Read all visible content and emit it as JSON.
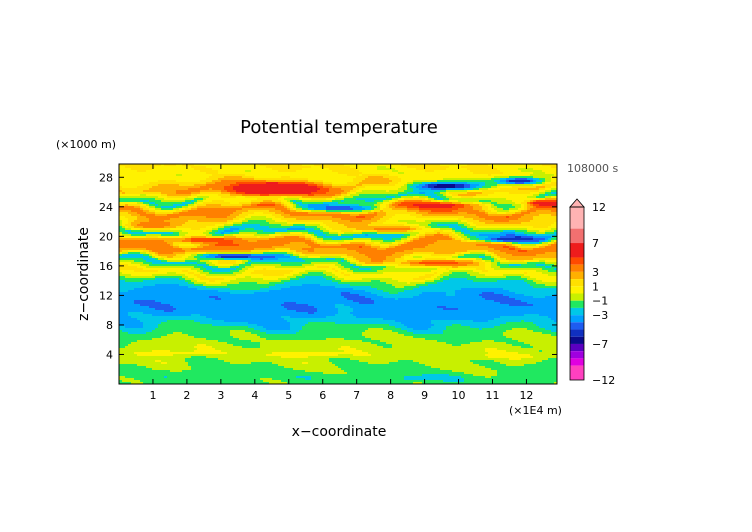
{
  "chart_data": {
    "type": "heatmap",
    "title": "Potential temperature",
    "xlabel": "x−coordinate",
    "ylabel": "z−coordinate",
    "x_unit": "(×1E4 m)",
    "y_unit": "(×1000 m)",
    "time_label": "108000 s",
    "xlim": [
      0,
      12.9
    ],
    "ylim": [
      0,
      29.8
    ],
    "x_ticks": [
      "1",
      "2",
      "3",
      "4",
      "5",
      "6",
      "7",
      "8",
      "9",
      "10",
      "11",
      "12"
    ],
    "y_ticks": [
      "4",
      "8",
      "12",
      "16",
      "20",
      "24",
      "28"
    ],
    "colorbar": {
      "tick_labels": [
        "12",
        "7",
        "3",
        "1",
        "−1",
        "−3",
        "−7",
        "−12"
      ],
      "levels": [
        {
          "lo": 9,
          "hi": 12,
          "color": "#ffb3b3"
        },
        {
          "lo": 7,
          "hi": 9,
          "color": "#f27070"
        },
        {
          "lo": 5,
          "hi": 7,
          "color": "#ee1c1c"
        },
        {
          "lo": 4,
          "hi": 5,
          "color": "#ff4a00"
        },
        {
          "lo": 3,
          "hi": 4,
          "color": "#ff8000"
        },
        {
          "lo": 2,
          "hi": 3,
          "color": "#ffb000"
        },
        {
          "lo": 1,
          "hi": 2,
          "color": "#ffe000"
        },
        {
          "lo": 0,
          "hi": 1,
          "color": "#fff200"
        },
        {
          "lo": -1,
          "hi": 0,
          "color": "#c8f000"
        },
        {
          "lo": -2,
          "hi": -1,
          "color": "#20e860"
        },
        {
          "lo": -3,
          "hi": -2,
          "color": "#00c8e8"
        },
        {
          "lo": -4,
          "hi": -3,
          "color": "#00a0ff"
        },
        {
          "lo": -5,
          "hi": -4,
          "color": "#1e5cf0"
        },
        {
          "lo": -6,
          "hi": -5,
          "color": "#1030c0"
        },
        {
          "lo": -7,
          "hi": -6,
          "color": "#0a0a8c"
        },
        {
          "lo": -8,
          "hi": -7,
          "color": "#5a00c0"
        },
        {
          "lo": -9,
          "hi": -8,
          "color": "#a000e0"
        },
        {
          "lo": -10,
          "hi": -9,
          "color": "#e000e0"
        },
        {
          "lo": -12,
          "hi": -10,
          "color": "#ff40c0"
        }
      ]
    },
    "bands": [
      {
        "z": 1.5,
        "value": -1.5
      },
      {
        "z": 3,
        "value": -0.7
      },
      {
        "z": 4.5,
        "value": -0.4
      },
      {
        "z": 6,
        "value": -0.9
      },
      {
        "z": 7.5,
        "value": -1.8
      },
      {
        "z": 9,
        "value": -3.3
      },
      {
        "z": 10.5,
        "value": -3.8
      },
      {
        "z": 12,
        "value": -3.4
      },
      {
        "z": 13.5,
        "value": -2.2
      },
      {
        "z": 15,
        "value": 1.2
      },
      {
        "z": 16.5,
        "value": -2.5
      },
      {
        "z": 17.5,
        "value": 2.5
      },
      {
        "z": 19,
        "value": 3.8
      },
      {
        "z": 20.5,
        "value": -3.3
      },
      {
        "z": 22,
        "value": 1.3
      },
      {
        "z": 23.5,
        "value": 3.8
      },
      {
        "z": 25,
        "value": -2.5
      },
      {
        "z": 26.5,
        "value": 2.5
      },
      {
        "z": 28,
        "value": 0.4
      },
      {
        "z": 29.8,
        "value": 1.0
      }
    ],
    "features": [
      {
        "x": 4.6,
        "z": 26.5,
        "rx": 1.3,
        "rz": 0.8,
        "value": 10
      },
      {
        "x": 4.3,
        "z": 26.3,
        "rx": 1.9,
        "rz": 1.1,
        "value": 6
      },
      {
        "x": 9.6,
        "z": 26.8,
        "rx": 1.2,
        "rz": 0.7,
        "value": -7
      },
      {
        "x": 11.8,
        "z": 27.5,
        "rx": 0.8,
        "rz": 0.6,
        "value": -6
      },
      {
        "x": 12.5,
        "z": 24.5,
        "rx": 0.7,
        "rz": 0.6,
        "value": 6
      },
      {
        "x": 9.5,
        "z": 24.2,
        "rx": 1.2,
        "rz": 0.6,
        "value": 6
      },
      {
        "x": 3.4,
        "z": 17.3,
        "rx": 1.4,
        "rz": 0.55,
        "value": -6
      },
      {
        "x": 11.5,
        "z": 19.6,
        "rx": 1.1,
        "rz": 0.5,
        "value": -6
      },
      {
        "x": 2.5,
        "z": 19.5,
        "rx": 1.4,
        "rz": 0.6,
        "value": 5
      },
      {
        "x": 9.3,
        "z": 16.4,
        "rx": 1.5,
        "rz": 0.6,
        "value": 5
      },
      {
        "x": 6.5,
        "z": 23.8,
        "rx": 1.2,
        "rz": 0.5,
        "value": -5
      },
      {
        "x": 1.0,
        "z": 21.5,
        "rx": 0.9,
        "rz": 0.7,
        "value": 4
      },
      {
        "x": 8.0,
        "z": 21.0,
        "rx": 1.3,
        "rz": 0.6,
        "value": 4
      },
      {
        "x": 0.8,
        "z": 11.5,
        "rx": 1.6,
        "rz": 0.9,
        "value": -4
      },
      {
        "x": 5.0,
        "z": 12.0,
        "rx": 1.6,
        "rz": 0.7,
        "value": -4
      },
      {
        "x": 11.5,
        "z": 10.5,
        "rx": 1.2,
        "rz": 0.8,
        "value": -4
      },
      {
        "x": 9.0,
        "z": 9.5,
        "rx": 1.2,
        "rz": 0.6,
        "value": -3.2
      },
      {
        "x": 1.5,
        "z": 4.2,
        "rx": 1.3,
        "rz": 0.45,
        "value": 0.5
      },
      {
        "x": 5.5,
        "z": 4.0,
        "rx": 1.6,
        "rz": 0.45,
        "value": 0.5
      },
      {
        "x": 11.5,
        "z": 3.8,
        "rx": 1.0,
        "rz": 0.4,
        "value": 0.5
      },
      {
        "x": 9.0,
        "z": 0.8,
        "rx": 1.2,
        "rz": 0.4,
        "value": -2.5
      }
    ]
  }
}
